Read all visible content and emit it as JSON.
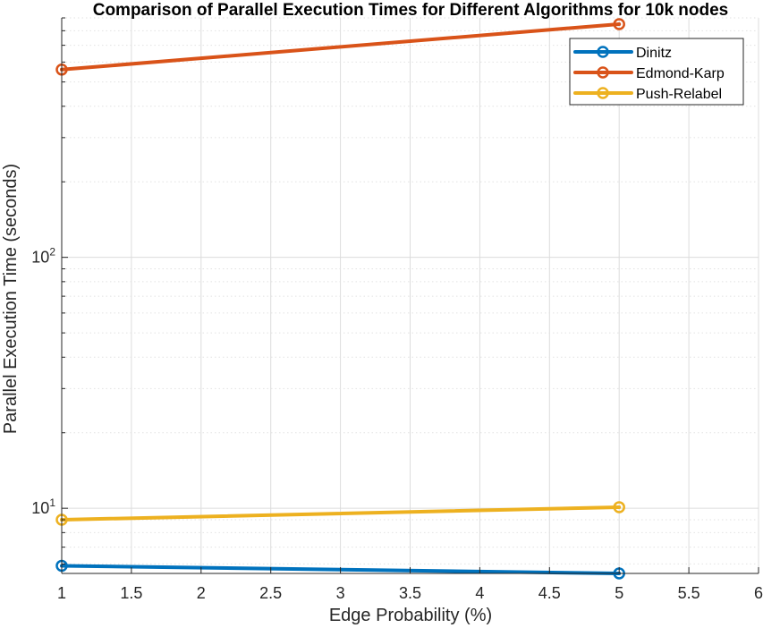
{
  "chart_data": {
    "type": "line",
    "title": "Comparison of Parallel Execution Times for Different Algorithms for 10k nodes",
    "xlabel": "Edge Probability (%)",
    "ylabel": "Parallel Execution Time (seconds)",
    "xlim": [
      1,
      6
    ],
    "ylim": [
      5.5,
      900
    ],
    "yscale": "log",
    "grid": true,
    "legend_position": "top-right",
    "x_ticks": [
      "1",
      "1.5",
      "2",
      "2.5",
      "3",
      "3.5",
      "4",
      "4.5",
      "5",
      "5.5",
      "6"
    ],
    "y_ticks": [
      {
        "base": "10",
        "exp": "1"
      },
      {
        "base": "10",
        "exp": "2"
      }
    ],
    "series": [
      {
        "name": "Dinitz",
        "color": "#0072BD",
        "x": [
          1,
          5
        ],
        "y": [
          5.9,
          5.5
        ]
      },
      {
        "name": "Edmond-Karp",
        "color": "#D95319",
        "x": [
          1,
          5
        ],
        "y": [
          560,
          850
        ]
      },
      {
        "name": "Push-Relabel",
        "color": "#EDB120",
        "x": [
          1,
          5
        ],
        "y": [
          9.0,
          10.1
        ]
      }
    ]
  }
}
